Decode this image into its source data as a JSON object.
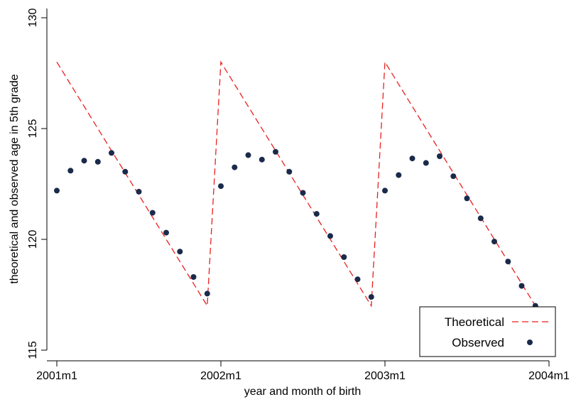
{
  "chart_data": {
    "type": "scatter",
    "xlabel": "year and month of birth",
    "ylabel": "theoretical and observed age in 5th grade",
    "xlim": [
      0,
      36
    ],
    "ylim": [
      115,
      130
    ],
    "xticks": [
      {
        "value": 0,
        "label": "2001m1"
      },
      {
        "value": 12,
        "label": "2002m1"
      },
      {
        "value": 24,
        "label": "2003m1"
      },
      {
        "value": 36,
        "label": "2004m1"
      }
    ],
    "yticks": [
      {
        "value": 115,
        "label": "115"
      },
      {
        "value": 120,
        "label": "120"
      },
      {
        "value": 125,
        "label": "125"
      },
      {
        "value": 130,
        "label": "130"
      }
    ],
    "grid": false,
    "legend_position": "bottom-right",
    "series": [
      {
        "name": "Theoretical",
        "style": "dashed-line",
        "color": "#e8201e",
        "points": [
          [
            0,
            128
          ],
          [
            11,
            117
          ],
          [
            12,
            128
          ],
          [
            23,
            117
          ],
          [
            24,
            128
          ],
          [
            35,
            117
          ]
        ]
      },
      {
        "name": "Observed",
        "style": "markers",
        "color": "#1a2a4a",
        "x": [
          0,
          1,
          2,
          3,
          4,
          5,
          6,
          7,
          8,
          9,
          10,
          11,
          12,
          13,
          14,
          15,
          16,
          17,
          18,
          19,
          20,
          21,
          22,
          23,
          24,
          25,
          26,
          27,
          28,
          29,
          30,
          31,
          32,
          33,
          34,
          35
        ],
        "y": [
          122.2,
          123.1,
          123.55,
          123.5,
          123.9,
          123.05,
          122.15,
          121.2,
          120.3,
          119.45,
          118.3,
          117.55,
          122.4,
          123.25,
          123.8,
          123.6,
          123.95,
          123.05,
          122.1,
          121.15,
          120.15,
          119.2,
          118.2,
          117.4,
          122.2,
          122.9,
          123.65,
          123.45,
          123.75,
          122.85,
          121.85,
          120.95,
          119.9,
          119.0,
          117.9,
          117.0
        ]
      }
    ]
  }
}
